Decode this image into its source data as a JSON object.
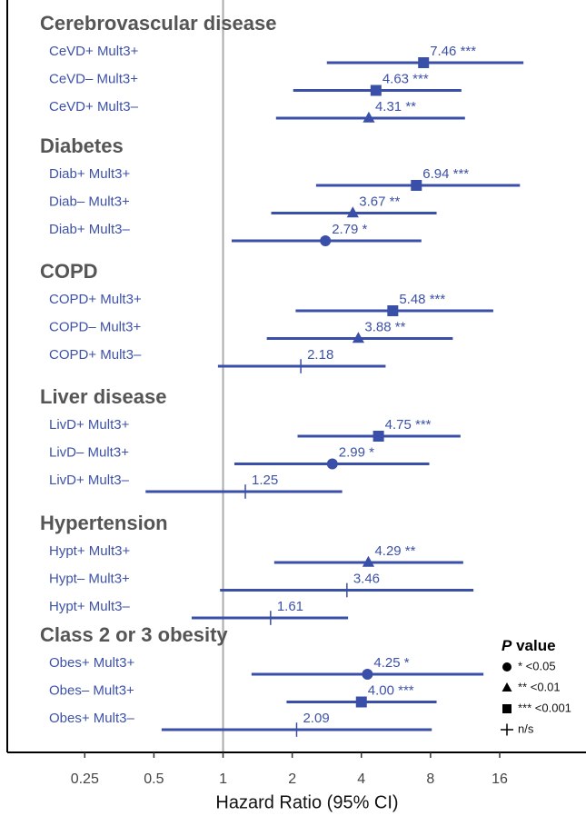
{
  "chart_data": {
    "type": "forest",
    "xlabel": "Hazard Ratio (95% CI)",
    "log_scale": true,
    "xlim": [
      0.115,
      38
    ],
    "xticks": [
      0.25,
      0.5,
      1,
      2,
      4,
      8,
      16
    ],
    "reference_line": 1,
    "color": "#3a4fa8",
    "groups": [
      {
        "name": "Cerebrovascular disease",
        "rows": [
          {
            "label": "CeVD+ Mult3+",
            "hr": 7.46,
            "lower": 2.83,
            "upper": 20.3,
            "value_label": "7.46 ***",
            "shape": "square"
          },
          {
            "label": "CeVD– Mult3+",
            "hr": 4.63,
            "lower": 2.02,
            "upper": 10.9,
            "value_label": "4.63 ***",
            "shape": "square"
          },
          {
            "label": "CeVD+ Mult3–",
            "hr": 4.31,
            "lower": 1.7,
            "upper": 11.3,
            "value_label": "4.31 **",
            "shape": "triangle"
          }
        ]
      },
      {
        "name": "Diabetes",
        "rows": [
          {
            "label": "Diab+ Mult3+",
            "hr": 6.94,
            "lower": 2.54,
            "upper": 19.6,
            "value_label": "6.94 ***",
            "shape": "square"
          },
          {
            "label": "Diab– Mult3+",
            "hr": 3.67,
            "lower": 1.62,
            "upper": 8.5,
            "value_label": "3.67 **",
            "shape": "triangle"
          },
          {
            "label": "Diab+ Mult3–",
            "hr": 2.79,
            "lower": 1.09,
            "upper": 7.3,
            "value_label": "2.79 *",
            "shape": "circle"
          }
        ]
      },
      {
        "name": "COPD",
        "rows": [
          {
            "label": "COPD+ Mult3+",
            "hr": 5.48,
            "lower": 2.07,
            "upper": 15.0,
            "value_label": "5.48 ***",
            "shape": "square"
          },
          {
            "label": "COPD– Mult3+",
            "hr": 3.88,
            "lower": 1.55,
            "upper": 10.0,
            "value_label": "3.88 **",
            "shape": "triangle"
          },
          {
            "label": "COPD+ Mult3–",
            "hr": 2.18,
            "lower": 0.95,
            "upper": 5.1,
            "shape": "tick"
          }
        ]
      },
      {
        "name": "Liver disease",
        "rows": [
          {
            "label": "LivD+ Mult3+",
            "hr": 4.75,
            "lower": 2.11,
            "upper": 10.8,
            "value_label": "4.75 ***",
            "shape": "square"
          },
          {
            "label": "LivD– Mult3+",
            "hr": 2.99,
            "lower": 1.12,
            "upper": 7.9,
            "value_label": "2.99 *",
            "shape": "circle"
          },
          {
            "label": "LivD+ Mult3–",
            "hr": 1.25,
            "lower": 0.46,
            "upper": 3.3,
            "shape": "tick"
          }
        ]
      },
      {
        "name": "Hypertension",
        "rows": [
          {
            "label": "Hypt+ Mult3+",
            "hr": 4.29,
            "lower": 1.67,
            "upper": 11.1,
            "value_label": "4.29 **",
            "shape": "triangle"
          },
          {
            "label": "Hypt– Mult3+",
            "hr": 3.46,
            "lower": 0.97,
            "upper": 12.3,
            "shape": "tick"
          },
          {
            "label": "Hypt+ Mult3–",
            "hr": 1.61,
            "lower": 0.73,
            "upper": 3.5,
            "shape": "tick"
          }
        ]
      },
      {
        "name": "Class 2 or 3 obesity",
        "rows": [
          {
            "label": "Obes+ Mult3+",
            "hr": 4.25,
            "lower": 1.33,
            "upper": 13.6,
            "value_label": "4.25 *",
            "shape": "circle"
          },
          {
            "label": "Obes– Mult3+",
            "hr": 4.0,
            "lower": 1.89,
            "upper": 8.5,
            "value_label": "4.00 ***",
            "shape": "square"
          },
          {
            "label": "Obes+ Mult3–",
            "hr": 2.09,
            "lower": 0.54,
            "upper": 8.1,
            "shape": "tick"
          }
        ]
      }
    ],
    "legend": {
      "title": [
        "P",
        "value"
      ],
      "entries": [
        {
          "shape": "circle",
          "label": "* <0.05"
        },
        {
          "shape": "triangle",
          "label": "** <0.01"
        },
        {
          "shape": "square",
          "label": "*** <0.001"
        },
        {
          "shape": "tick",
          "label": "n/s"
        }
      ]
    }
  }
}
